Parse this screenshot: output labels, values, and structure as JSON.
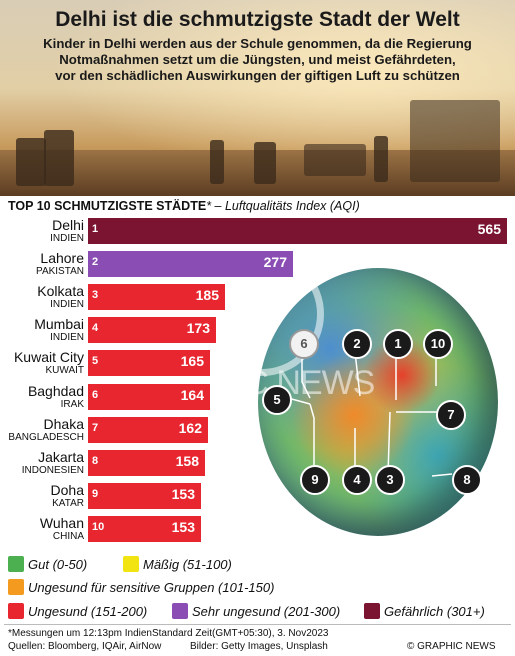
{
  "title": "Delhi ist die schmutzigste Stadt der Welt",
  "subtitle": [
    "Kinder in Delhi werden aus der Schule genommen, da die Regierung",
    "Notmaßnahmen setzt um die Jüngsten, und meist Gefährdeten,",
    "vor den schädlichen Auswirkungen der giftigen Luft zu schützen"
  ],
  "chart_header": {
    "bold": "TOP 10 SCHMUTZIGSTE STÄDTE",
    "rest": "* – Luftqualitäts Index (AQI)"
  },
  "chart_data": {
    "type": "bar",
    "orientation": "horizontal",
    "xlim": [
      0,
      565
    ],
    "categories": [
      "Delhi",
      "Lahore",
      "Kolkata",
      "Mumbai",
      "Kuwait City",
      "Baghdad",
      "Dhaka",
      "Jakarta",
      "Doha",
      "Wuhan"
    ],
    "countries": [
      "INDIEN",
      "PAKISTAN",
      "INDIEN",
      "INDIEN",
      "KUWAIT",
      "IRAK",
      "BANGLADESCH",
      "INDONESIEN",
      "KATAR",
      "CHINA"
    ],
    "ranks": [
      "1",
      "2",
      "3",
      "4",
      "5",
      "6",
      "7",
      "8",
      "9",
      "10"
    ],
    "values": [
      565,
      277,
      185,
      173,
      165,
      164,
      162,
      158,
      153,
      153
    ],
    "bar_colors": [
      "#7a1431",
      "#8a4db3",
      "#e8262f",
      "#e8262f",
      "#e8262f",
      "#e8262f",
      "#e8262f",
      "#e8262f",
      "#e8262f",
      "#e8262f"
    ]
  },
  "map_markers": [
    "6",
    "2",
    "1",
    "10",
    "5",
    "7",
    "9",
    "4",
    "3",
    "8"
  ],
  "legend": [
    {
      "label": "Gut (0-50)",
      "color": "#4caf50"
    },
    {
      "label": "Mäßig (51-100)",
      "color": "#f2e313"
    },
    {
      "label": "Ungesund für sensitive Gruppen (101-150)",
      "color": "#f39a1f"
    },
    {
      "label": "Ungesund (151-200)",
      "color": "#e8262f"
    },
    {
      "label": "Sehr ungesund (201-300)",
      "color": "#8a4db3"
    },
    {
      "label": "Gefährlich (301+)",
      "color": "#7a1431"
    }
  ],
  "footnote": "*Messungen um 12:13pm IndienStandard Zeit(GMT+05:30), 3. Nov2023",
  "sources": "Quellen: Bloomberg, IQAir, AirNow",
  "picture_credit": "Bilder: Getty Images, Unsplash",
  "credit": "© GRAPHIC NEWS",
  "watermark": "GRAPHIC NEWS"
}
